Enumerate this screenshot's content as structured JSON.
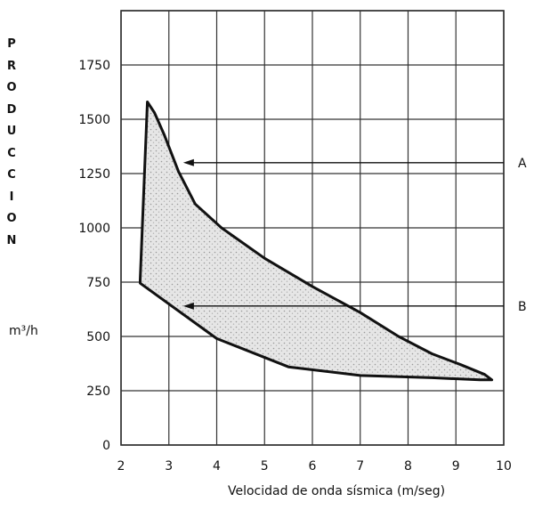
{
  "chart_data": {
    "type": "area",
    "title": "",
    "ylabel": "PRODUCCION",
    "yunit": "m³/h",
    "xlabel": "Velocidad de onda sísmica (m/seg)",
    "xlim": [
      2,
      10
    ],
    "ylim": [
      0,
      2000
    ],
    "xticks": [
      2,
      3,
      4,
      5,
      6,
      7,
      8,
      9,
      10
    ],
    "yticks": [
      0,
      250,
      500,
      750,
      1000,
      1250,
      1500,
      1750
    ],
    "grid": true,
    "region": {
      "x": [
        2.4,
        2.55,
        2.7,
        2.9,
        3.2,
        3.55,
        4.1,
        5.0,
        6.0,
        7.0,
        7.8,
        8.5,
        9.1,
        9.6,
        9.75,
        9.5,
        8.5,
        7.0,
        5.5,
        4.0,
        2.4
      ],
      "y": [
        760,
        1580,
        1530,
        1430,
        1260,
        1110,
        1000,
        860,
        730,
        610,
        500,
        420,
        370,
        325,
        300,
        300,
        310,
        320,
        360,
        490,
        745
      ]
    },
    "annotations": [
      {
        "label": "A",
        "x": 3.3,
        "y": 1300
      },
      {
        "label": "B",
        "x": 3.3,
        "y": 640
      }
    ]
  }
}
